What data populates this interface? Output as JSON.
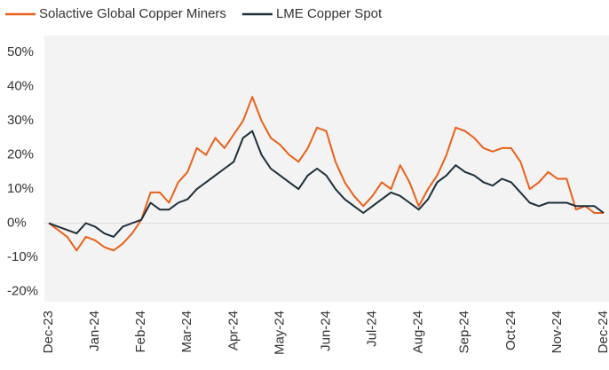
{
  "chart_data": {
    "type": "line",
    "categories": [
      "Dec-23",
      null,
      null,
      null,
      null,
      "Jan-24",
      null,
      null,
      null,
      null,
      "Feb-24",
      null,
      null,
      null,
      null,
      "Mar-24",
      null,
      null,
      null,
      null,
      "Apr-24",
      null,
      null,
      null,
      null,
      "May-24",
      null,
      null,
      null,
      null,
      "Jun-24",
      null,
      null,
      null,
      null,
      "Jul-24",
      null,
      null,
      null,
      null,
      "Aug-24",
      null,
      null,
      null,
      null,
      "Sep-24",
      null,
      null,
      null,
      null,
      "Oct-24",
      null,
      null,
      null,
      null,
      "Nov-24",
      null,
      null,
      null,
      null,
      "Dec-24"
    ],
    "series": [
      {
        "name": "Solactive Global Copper Miners",
        "color": "#e8611a",
        "values": [
          0,
          -2,
          -4,
          -8,
          -4,
          -5,
          -7,
          -8,
          -6,
          -3,
          1,
          9,
          9,
          6,
          12,
          15,
          22,
          20,
          25,
          22,
          26,
          30,
          37,
          30,
          25,
          23,
          20,
          18,
          22,
          28,
          27,
          18,
          12,
          8,
          5,
          8,
          12,
          10,
          17,
          12,
          5,
          10,
          14,
          20,
          28,
          27,
          25,
          22,
          21,
          22,
          22,
          18,
          10,
          12,
          15,
          13,
          13,
          4,
          5,
          3,
          3
        ]
      },
      {
        "name": "LME Copper Spot",
        "color": "#1c2f3a",
        "values": [
          0,
          -1,
          -2,
          -3,
          0,
          -1,
          -3,
          -4,
          -1,
          0,
          1,
          6,
          4,
          4,
          6,
          7,
          10,
          12,
          14,
          16,
          18,
          25,
          27,
          20,
          16,
          14,
          12,
          10,
          14,
          16,
          14,
          10,
          7,
          5,
          3,
          5,
          7,
          9,
          8,
          6,
          4,
          7,
          12,
          14,
          17,
          15,
          14,
          12,
          11,
          13,
          12,
          9,
          6,
          5,
          6,
          6,
          6,
          5,
          5,
          5,
          3
        ]
      }
    ],
    "ylim": [
      -23,
      55
    ],
    "yticks": [
      {
        "value": -20,
        "label": "-20%"
      },
      {
        "value": -10,
        "label": "-10%"
      },
      {
        "value": 0,
        "label": "0%"
      },
      {
        "value": 10,
        "label": "10%"
      },
      {
        "value": 20,
        "label": "20%"
      },
      {
        "value": 30,
        "label": "30%"
      },
      {
        "value": 40,
        "label": "40%"
      },
      {
        "value": 50,
        "label": "50%"
      }
    ],
    "legend": "top-left"
  }
}
